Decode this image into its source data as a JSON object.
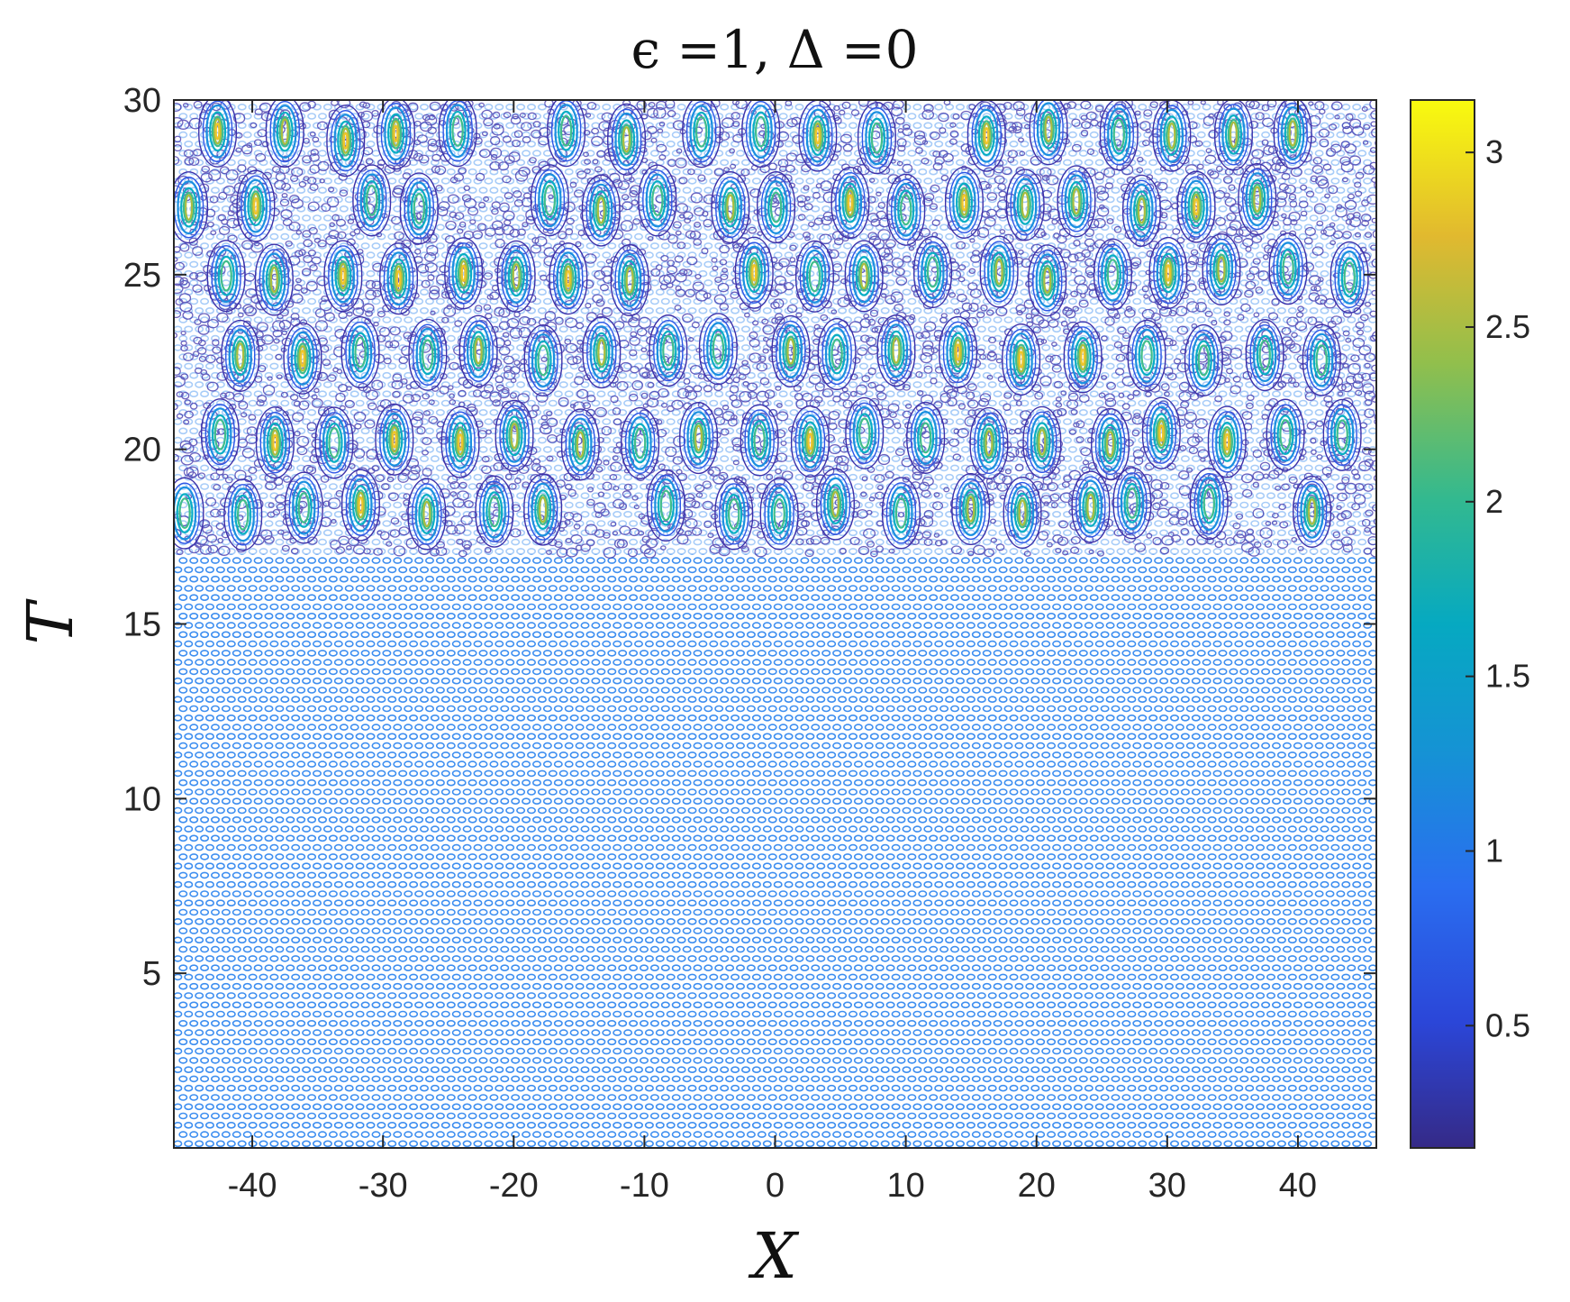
{
  "chart_data": {
    "type": "heatmap",
    "subtype": "contour",
    "title": "ϵ =1, Δ =0",
    "xlabel": "X",
    "ylabel": "T",
    "xlim": [
      -46,
      46
    ],
    "ylim": [
      0,
      30
    ],
    "x_ticks": [
      -40,
      -30,
      -20,
      -10,
      0,
      10,
      20,
      30,
      40
    ],
    "x_tick_labels": [
      "-40",
      "-30",
      "-20",
      "-10",
      "0",
      "10",
      "20",
      "30",
      "40"
    ],
    "y_ticks": [
      5,
      10,
      15,
      20,
      25,
      30
    ],
    "y_tick_labels": [
      "5",
      "10",
      "15",
      "20",
      "25",
      "30"
    ],
    "grid": false,
    "colormap": "parula",
    "colorbar": {
      "position": "right",
      "range": [
        0.15,
        3.15
      ],
      "ticks": [
        0.5,
        1,
        1.5,
        2,
        2.5,
        3
      ],
      "tick_labels": [
        "0.5",
        "1",
        "1.5",
        "2",
        "2.5",
        "3"
      ]
    },
    "regions": [
      {
        "description": "uniform background lattice",
        "t_range": [
          0,
          17
        ],
        "amplitude": 1.0
      },
      {
        "description": "breather / rogue-wave rows",
        "t_range": [
          17,
          30
        ],
        "peak_rows_t": [
          18.3,
          20.3,
          22.7,
          25.0,
          27.0,
          29.0
        ],
        "peak_amplitude": 3.1
      }
    ],
    "colors": {
      "axis": "#262626",
      "background_contour": "#3d8ef0",
      "low": "#352a87",
      "peak": "#f9fb0e"
    }
  }
}
